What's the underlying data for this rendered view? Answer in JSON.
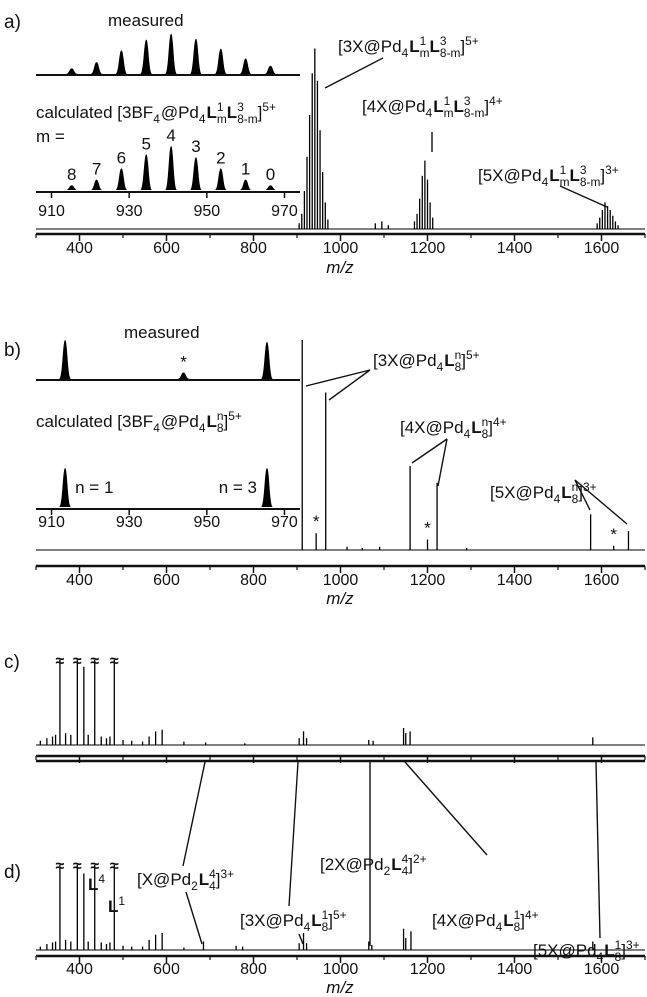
{
  "chart_data": [
    {
      "type": "spectrum",
      "panel_label": "a)",
      "xlabel": "m/z",
      "color": "#000000",
      "xlim": [
        300,
        1700
      ],
      "xticks": [
        400,
        600,
        800,
        1000,
        1200,
        1400,
        1600
      ],
      "xminorticks": [
        300,
        500,
        700,
        900,
        1100,
        1300,
        1500,
        1700
      ],
      "ylim": [
        0,
        100
      ],
      "x": [
        905,
        911,
        917,
        923,
        929,
        935,
        941,
        947,
        953,
        959,
        965,
        971,
        1080,
        1095,
        1110,
        1170,
        1176,
        1182,
        1188,
        1194,
        1200,
        1206,
        1212,
        1590,
        1596,
        1602,
        1608,
        1614,
        1620,
        1626,
        1632,
        1638
      ],
      "values": [
        3,
        8,
        20,
        38,
        60,
        82,
        95,
        78,
        52,
        30,
        14,
        5,
        3,
        4,
        2,
        4,
        8,
        16,
        28,
        36,
        26,
        14,
        6,
        3,
        6,
        10,
        14,
        12,
        10,
        7,
        4,
        2
      ],
      "annotations": [
        {
          "parts": [
            "[3X@Pd",
            {
              "text": "4",
              "style": "sub"
            },
            {
              "text": "L",
              "style": "bold"
            },
            {
              "text": "1",
              "style": "sup"
            },
            {
              "text": "m",
              "style": "stack"
            },
            {
              "text": "L",
              "style": "bold"
            },
            {
              "text": "3",
              "style": "sup"
            },
            {
              "text": "8-m",
              "style": "stack"
            },
            "]",
            {
              "text": "5+",
              "style": "sup"
            }
          ]
        },
        {
          "parts": [
            "[4X@Pd",
            {
              "text": "4",
              "style": "sub"
            },
            {
              "text": "L",
              "style": "bold"
            },
            {
              "text": "1",
              "style": "sup"
            },
            {
              "text": "m",
              "style": "stack"
            },
            {
              "text": "L",
              "style": "bold"
            },
            {
              "text": "3",
              "style": "sup"
            },
            {
              "text": "8-m",
              "style": "stack"
            },
            "]",
            {
              "text": "4+",
              "style": "sup"
            }
          ]
        },
        {
          "parts": [
            "[5X@Pd",
            {
              "text": "4",
              "style": "sub"
            },
            {
              "text": "L",
              "style": "bold"
            },
            {
              "text": "1",
              "style": "sup"
            },
            {
              "text": "m",
              "style": "stack"
            },
            {
              "text": "L",
              "style": "bold"
            },
            {
              "text": "3",
              "style": "sup"
            },
            {
              "text": "8-m",
              "style": "stack"
            },
            "]",
            {
              "text": "3+",
              "style": "sup"
            }
          ]
        }
      ],
      "insets": [
        {
          "label": [
            "measured"
          ],
          "xlim": [
            906,
            974
          ],
          "ylim": [
            0,
            100
          ],
          "x": [
            915.2,
            921.6,
            928,
            934.4,
            940.8,
            947.2,
            953.6,
            960,
            966.4
          ],
          "values": [
            8,
            22,
            48,
            72,
            85,
            74,
            52,
            30,
            14
          ]
        },
        {
          "label": [
            "calculated [3BF",
            {
              "text": "4",
              "style": "sub"
            },
            "@Pd",
            {
              "text": "4",
              "style": "sub"
            },
            {
              "text": "L",
              "style": "bold"
            },
            {
              "text": "1",
              "style": "sup"
            },
            {
              "text": "m",
              "style": "stack"
            },
            {
              "text": "L",
              "style": "bold"
            },
            {
              "text": "3",
              "style": "sup"
            },
            {
              "text": "8-m",
              "style": "stack"
            },
            "]",
            {
              "text": "5+",
              "style": "sup"
            }
          ],
          "peak_label_prefix": "m =",
          "xlim": [
            906,
            974
          ],
          "xticks": [
            910,
            930,
            950,
            970
          ],
          "ylim": [
            0,
            100
          ],
          "x": [
            915.2,
            921.6,
            928,
            934.4,
            940.8,
            947.2,
            953.6,
            960,
            966.4
          ],
          "values": [
            5,
            15,
            35,
            60,
            75,
            55,
            35,
            15,
            5
          ],
          "peak_labels": [
            8,
            7,
            6,
            5,
            4,
            3,
            2,
            1,
            0
          ],
          "peak_label_position": "above"
        }
      ]
    },
    {
      "type": "spectrum",
      "panel_label": "b)",
      "xlabel": "m/z",
      "color": "#000000",
      "xlim": [
        300,
        1700
      ],
      "xticks": [
        400,
        600,
        800,
        1000,
        1200,
        1400,
        1600
      ],
      "xminorticks": [
        300,
        500,
        700,
        900,
        1100,
        1300,
        1500,
        1700
      ],
      "ylim": [
        0,
        100
      ],
      "x": [
        912,
        944,
        966,
        1015,
        1050,
        1090,
        1160,
        1200,
        1222,
        1290,
        1575,
        1628,
        1662
      ],
      "values": [
        100,
        8,
        75,
        1.5,
        1,
        1.5,
        40,
        5,
        32,
        1,
        17,
        2,
        9
      ],
      "peak_labels": [
        null,
        "*",
        null,
        null,
        null,
        null,
        null,
        "*",
        null,
        null,
        null,
        "*",
        null
      ],
      "annotations": [
        {
          "parts": [
            "[3X@Pd",
            {
              "text": "4",
              "style": "sub"
            },
            {
              "text": "L",
              "style": "bold"
            },
            {
              "text": "n",
              "style": "sup"
            },
            {
              "text": "8",
              "style": "stack"
            },
            "]",
            {
              "text": "5+",
              "style": "sup"
            }
          ]
        },
        {
          "parts": [
            "[4X@Pd",
            {
              "text": "4",
              "style": "sub"
            },
            {
              "text": "L",
              "style": "bold"
            },
            {
              "text": "n",
              "style": "sup"
            },
            {
              "text": "8",
              "style": "stack"
            },
            "]",
            {
              "text": "4+",
              "style": "sup"
            }
          ]
        },
        {
          "parts": [
            "[5X@Pd",
            {
              "text": "4",
              "style": "sub"
            },
            {
              "text": "L",
              "style": "bold"
            },
            {
              "text": "n",
              "style": "sup"
            },
            {
              "text": "8",
              "style": "stack"
            },
            "]",
            {
              "text": "3+",
              "style": "sup"
            }
          ]
        }
      ],
      "insets": [
        {
          "label": [
            "measured"
          ],
          "xlim": [
            906,
            974
          ],
          "ylim": [
            0,
            100
          ],
          "x": [
            913.5,
            944,
            965.5
          ],
          "values": [
            100,
            12,
            95
          ],
          "peak_labels": [
            null,
            "*",
            null
          ],
          "peak_label_position": "above"
        },
        {
          "label": [
            "calculated [3BF",
            {
              "text": "4",
              "style": "sub"
            },
            "@Pd",
            {
              "text": "4",
              "style": "sub"
            },
            {
              "text": "L",
              "style": "bold"
            },
            {
              "text": "n",
              "style": "sup"
            },
            {
              "text": "8",
              "style": "stack"
            },
            "]",
            {
              "text": "5+",
              "style": "sup"
            }
          ],
          "xlim": [
            906,
            974
          ],
          "xticks": [
            910,
            930,
            950,
            970
          ],
          "ylim": [
            0,
            100
          ],
          "x": [
            913.5,
            965.5
          ],
          "values": [
            100,
            100
          ],
          "peak_labels": [
            "n = 1",
            "n = 3"
          ],
          "peak_label_position": "beside"
        }
      ]
    },
    {
      "type": "spectrum",
      "panel_label": "c)",
      "color": "#000000",
      "break_label": "≈",
      "xlim": [
        300,
        1700
      ],
      "xticks": [
        400,
        600,
        800,
        1000,
        1200,
        1400,
        1600
      ],
      "xminorticks": [
        300,
        500,
        700,
        900,
        1100,
        1300,
        1500,
        1700
      ],
      "ylim": [
        0,
        100
      ],
      "x": [
        310,
        325,
        338,
        345,
        355,
        368,
        380,
        395,
        410,
        420,
        435,
        450,
        462,
        470,
        480,
        500,
        520,
        545,
        560,
        575,
        590,
        640,
        690,
        780,
        905,
        915,
        922,
        1065,
        1075,
        1145,
        1150,
        1160,
        1580
      ],
      "values": [
        5,
        8,
        10,
        12,
        100,
        14,
        12,
        100,
        92,
        12,
        100,
        10,
        8,
        10,
        100,
        6,
        5,
        4,
        10,
        16,
        18,
        4,
        3,
        2,
        8,
        16,
        8,
        6,
        5,
        20,
        14,
        16,
        9
      ]
    },
    {
      "type": "spectrum",
      "panel_label": "d)",
      "xlabel": "m/z",
      "color": "#000000",
      "break_label": "≈",
      "xlim": [
        300,
        1700
      ],
      "xticks": [
        400,
        600,
        800,
        1000,
        1200,
        1400,
        1600
      ],
      "xminorticks": [
        300,
        500,
        700,
        900,
        1100,
        1300,
        1500,
        1700
      ],
      "ylim": [
        0,
        100
      ],
      "x": [
        310,
        325,
        338,
        345,
        355,
        368,
        380,
        395,
        410,
        420,
        435,
        450,
        462,
        470,
        480,
        500,
        520,
        545,
        560,
        575,
        590,
        640,
        685,
        760,
        775,
        905,
        915,
        922,
        1065,
        1072,
        1145,
        1150,
        1162,
        1580
      ],
      "values": [
        4,
        7,
        9,
        10,
        100,
        12,
        10,
        100,
        90,
        10,
        100,
        9,
        7,
        9,
        100,
        5,
        4,
        4,
        12,
        18,
        20,
        3,
        10,
        5,
        4,
        8,
        20,
        8,
        10,
        6,
        25,
        14,
        22,
        10
      ],
      "annotations": [
        {
          "parts": [
            "[X@Pd",
            {
              "text": "2",
              "style": "sub"
            },
            {
              "text": "L",
              "style": "bold"
            },
            {
              "text": "4",
              "style": "sup"
            },
            {
              "text": "4",
              "style": "stack"
            },
            "]",
            {
              "text": "3+",
              "style": "sup"
            }
          ]
        },
        {
          "parts": [
            "[3X@Pd",
            {
              "text": "4",
              "style": "sub"
            },
            {
              "text": "L",
              "style": "bold"
            },
            {
              "text": "1",
              "style": "sup"
            },
            {
              "text": "8",
              "style": "stack"
            },
            "]",
            {
              "text": "5+",
              "style": "sup"
            }
          ]
        },
        {
          "parts": [
            "[2X@Pd",
            {
              "text": "2",
              "style": "sub"
            },
            {
              "text": "L",
              "style": "bold"
            },
            {
              "text": "4",
              "style": "sup"
            },
            {
              "text": "4",
              "style": "stack"
            },
            "]",
            {
              "text": "2+",
              "style": "sup"
            }
          ]
        },
        {
          "parts": [
            "[4X@Pd",
            {
              "text": "4",
              "style": "sub"
            },
            {
              "text": "L",
              "style": "bold"
            },
            {
              "text": "1",
              "style": "sup"
            },
            {
              "text": "8",
              "style": "stack"
            },
            "]",
            {
              "text": "4+",
              "style": "sup"
            }
          ]
        },
        {
          "parts": [
            "[5X@Pd",
            {
              "text": "4",
              "style": "sub"
            },
            {
              "text": "L",
              "style": "bold"
            },
            {
              "text": "1",
              "style": "sup"
            },
            {
              "text": "8",
              "style": "stack"
            },
            "]",
            {
              "text": "3+",
              "style": "sup"
            }
          ]
        },
        {
          "parts": [
            {
              "text": "L",
              "style": "bold"
            },
            {
              "text": "4",
              "style": "sup"
            }
          ]
        },
        {
          "parts": [
            {
              "text": "L",
              "style": "bold"
            },
            {
              "text": "1",
              "style": "sup"
            }
          ]
        }
      ]
    }
  ]
}
